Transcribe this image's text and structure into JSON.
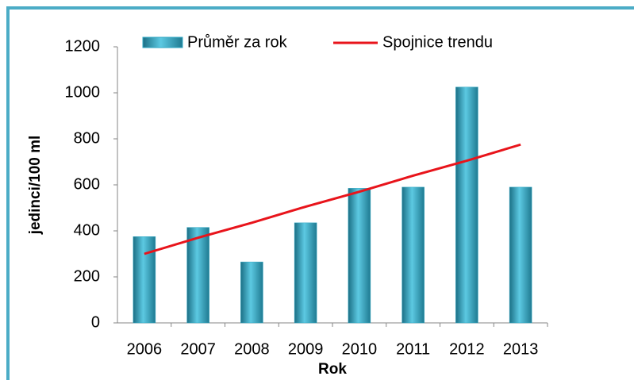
{
  "chart_data": {
    "type": "bar",
    "x_label": "Rok",
    "y_label": "jedinci/100 ml",
    "categories": [
      "2006",
      "2007",
      "2008",
      "2009",
      "2010",
      "2011",
      "2012",
      "2013"
    ],
    "series": [
      {
        "name": "Průměr za rok",
        "type": "bar",
        "color": "#31a8c4",
        "values": [
          375,
          415,
          265,
          435,
          585,
          590,
          1025,
          590
        ]
      },
      {
        "name": "Spojnice trendu",
        "type": "line",
        "color": "#e8141b",
        "values": [
          300,
          370,
          435,
          505,
          570,
          640,
          705,
          775
        ]
      }
    ],
    "ylim": [
      0,
      1200
    ],
    "yticks": [
      0,
      200,
      400,
      600,
      800,
      1000,
      1200
    ],
    "grid": false,
    "legend": "top"
  }
}
